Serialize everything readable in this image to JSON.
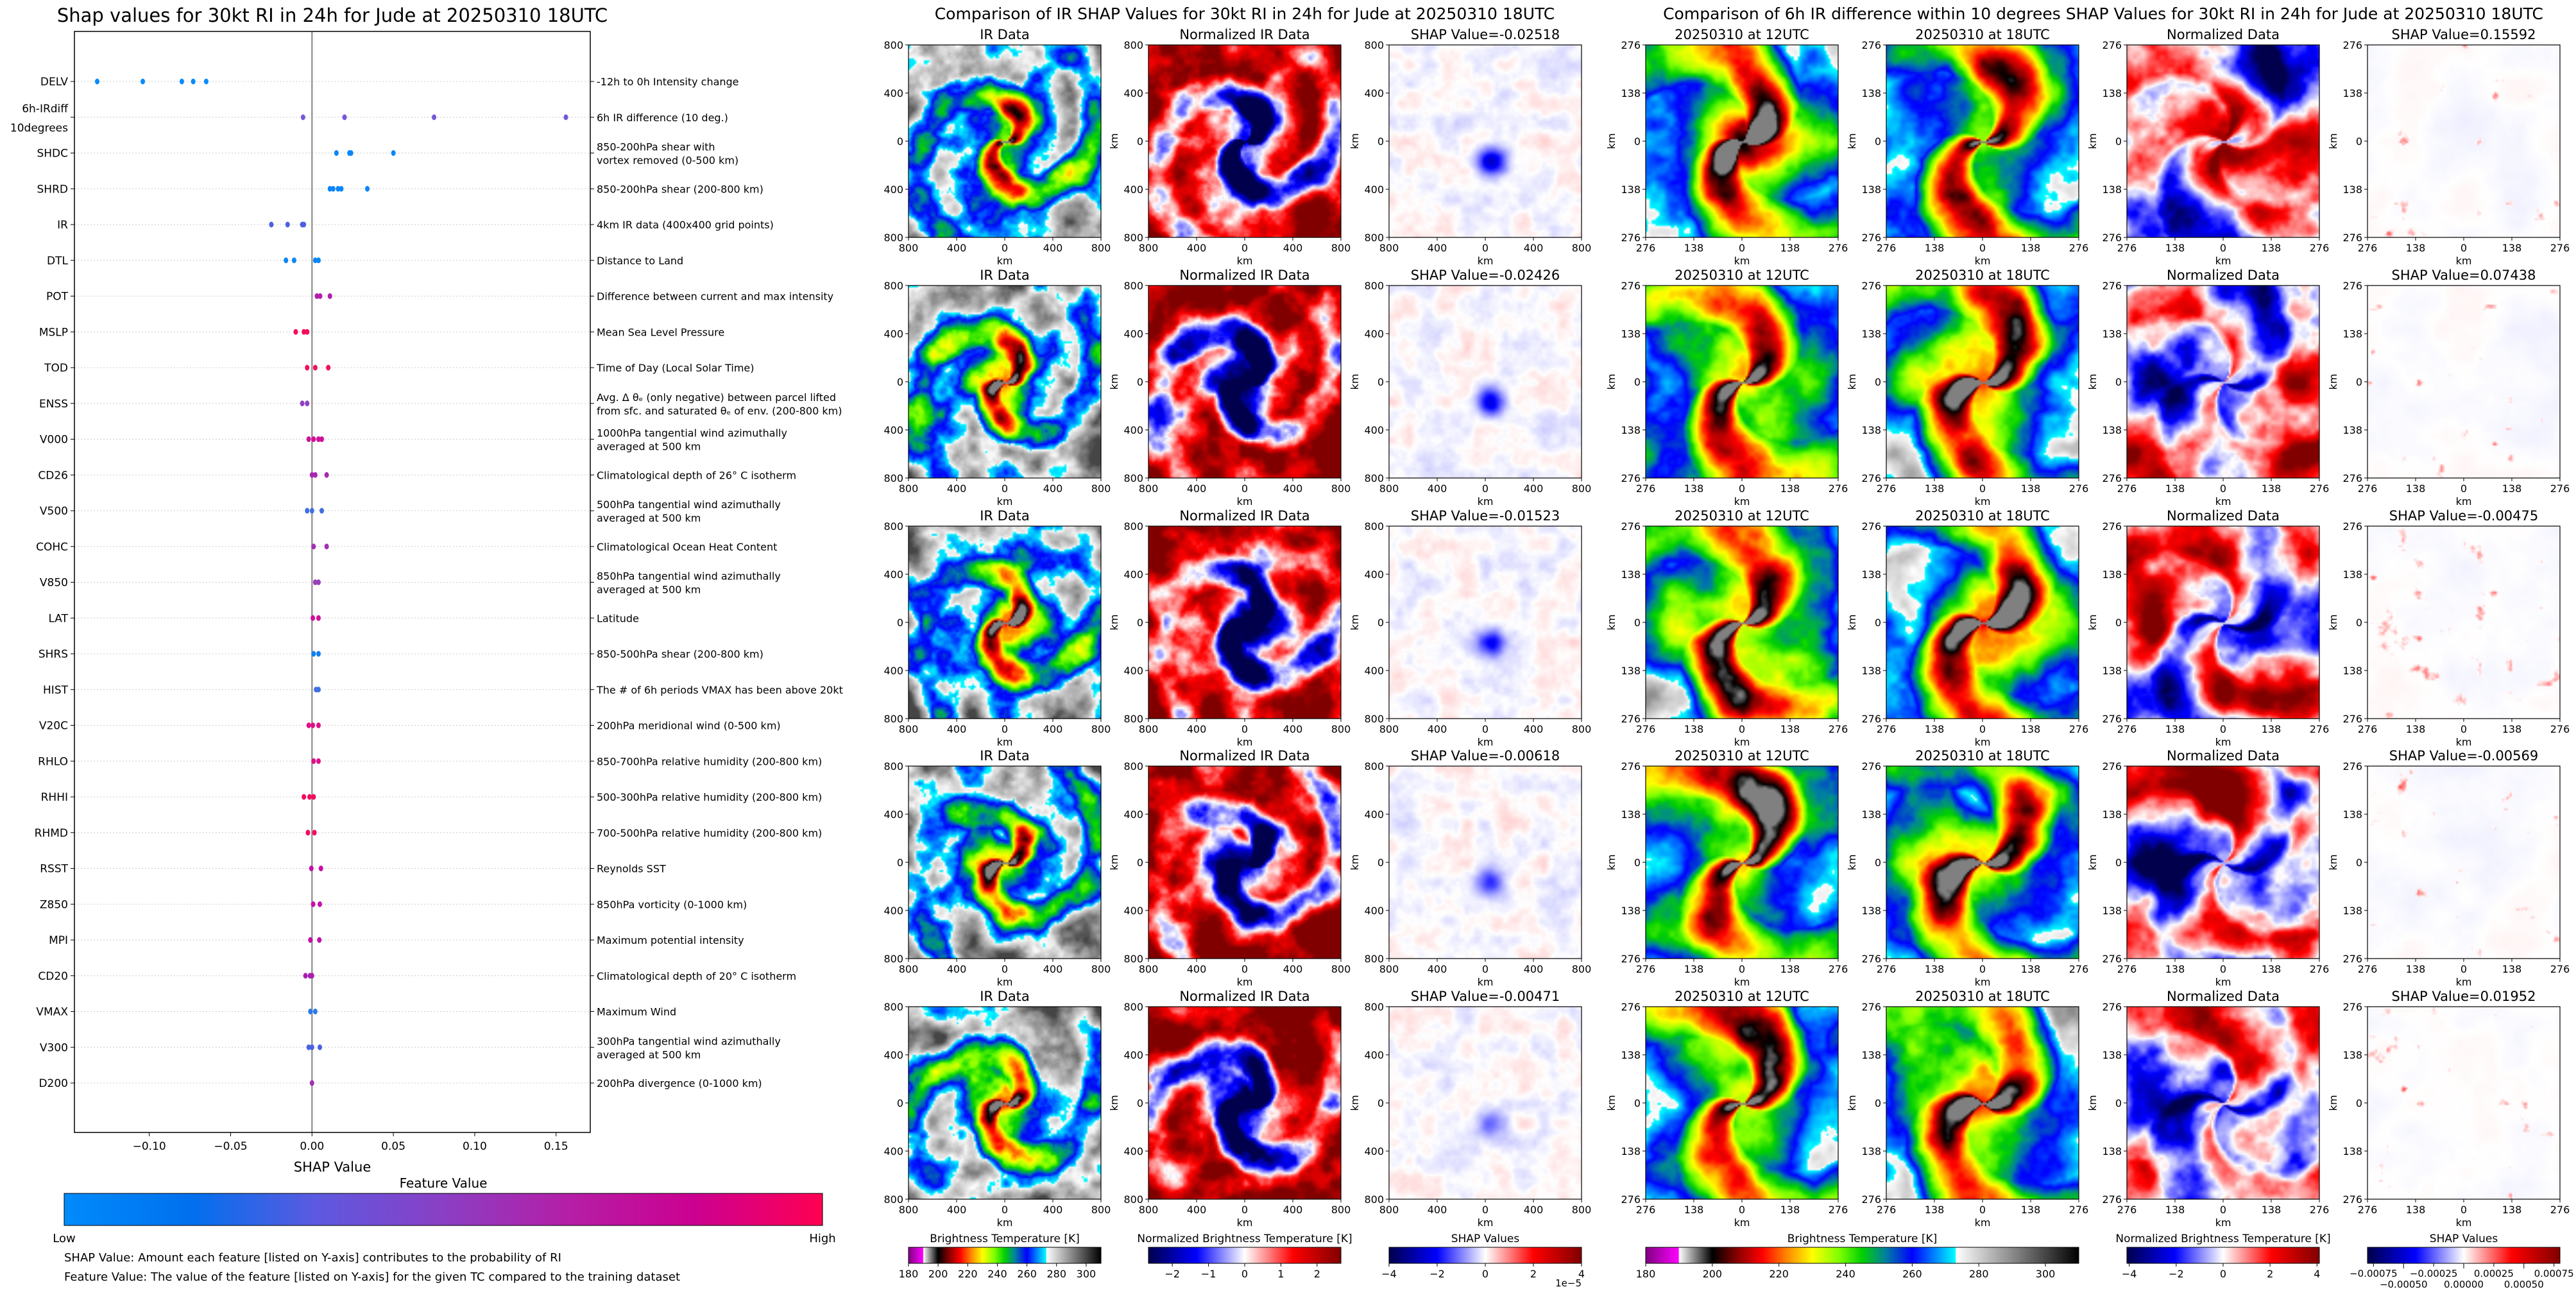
{
  "chart_data": [
    {
      "type": "scatter",
      "title": "Shap values for 30kt RI in 24h for Jude at 20250310 18UTC",
      "xlabel": "SHAP Value",
      "xlim": [
        -0.146,
        0.171
      ],
      "xticks": [
        -0.1,
        -0.05,
        0.0,
        0.05,
        0.1,
        0.15
      ],
      "xtick_labels": [
        "−0.10",
        "−0.05",
        "0.00",
        "0.05",
        "0.10",
        "0.15"
      ],
      "grid": "horizontal dotted",
      "features": [
        {
          "name": [
            "DELV"
          ],
          "description": [
            "-12h to 0h Intensity change"
          ],
          "color": "#0a8bfb",
          "shap_values": [
            -0.132,
            -0.104,
            -0.08,
            -0.073,
            -0.065
          ]
        },
        {
          "name": [
            "6h-IRdiff",
            "10degrees"
          ],
          "description": [
            "6h IR difference (10 deg.)"
          ],
          "color": "#7657d8",
          "shap_values": [
            -0.0055,
            0.02,
            0.075,
            0.156
          ]
        },
        {
          "name": [
            "SHDC"
          ],
          "description": [
            "850-200hPa shear with",
            "vortex removed (0-500 km)"
          ],
          "color": "#0a86f8",
          "shap_values": [
            0.015,
            0.023,
            0.024,
            0.05
          ]
        },
        {
          "name": [
            "SHRD"
          ],
          "description": [
            "850-200hPa shear (200-800 km)"
          ],
          "color": "#0a86f8",
          "shap_values": [
            0.011,
            0.013,
            0.016,
            0.018,
            0.034
          ]
        },
        {
          "name": [
            "IR"
          ],
          "description": [
            "4km IR data (400x400 grid points)"
          ],
          "color": "#4e5fe0",
          "shap_values": [
            -0.025,
            -0.015,
            -0.006,
            -0.005
          ]
        },
        {
          "name": [
            "DTL"
          ],
          "description": [
            "Distance to Land"
          ],
          "color": "#0a86f8",
          "shap_values": [
            -0.016,
            -0.011,
            0.002,
            0.004
          ]
        },
        {
          "name": [
            "POT"
          ],
          "description": [
            "Difference between current and max intensity"
          ],
          "color": "#b41eaa",
          "shap_values": [
            0.003,
            0.005,
            0.011
          ]
        },
        {
          "name": [
            "MSLP"
          ],
          "description": [
            "Mean Sea Level Pressure"
          ],
          "color": "#f50a5c",
          "shap_values": [
            -0.01,
            -0.005,
            -0.003
          ]
        },
        {
          "name": [
            "TOD"
          ],
          "description": [
            "Time of Day (Local Solar Time)"
          ],
          "color": "#f0105e",
          "shap_values": [
            -0.003,
            0.002,
            0.01
          ]
        },
        {
          "name": [
            "ENSS"
          ],
          "description": [
            "Avg. Δ θₑ (only negative) between parcel lifted",
            "from sfc. and saturated θₑ of env. (200-800 km)"
          ],
          "color": "#9040c4",
          "shap_values": [
            -0.006,
            -0.003
          ]
        },
        {
          "name": [
            "V000"
          ],
          "description": [
            "1000hPa tangential wind azimuthally",
            "averaged at 500 km"
          ],
          "color": "#d0109a",
          "shap_values": [
            -0.002,
            0.001,
            0.004,
            0.006
          ]
        },
        {
          "name": [
            "CD26"
          ],
          "description": [
            "Climatological depth of 26° C isotherm"
          ],
          "color": "#a828b0",
          "shap_values": [
            0.0,
            0.002,
            0.009
          ]
        },
        {
          "name": [
            "V500"
          ],
          "description": [
            "500hPa tangential wind azimuthally",
            "averaged at 500 km"
          ],
          "color": "#4070e0",
          "shap_values": [
            -0.003,
            0.0,
            0.006
          ]
        },
        {
          "name": [
            "COHC"
          ],
          "description": [
            "Climatological Ocean Heat Content"
          ],
          "color": "#a030b4",
          "shap_values": [
            0.001,
            0.009
          ]
        },
        {
          "name": [
            "V850"
          ],
          "description": [
            "850hPa tangential wind azimuthally",
            "averaged at 500 km"
          ],
          "color": "#9a40b8",
          "shap_values": [
            0.002,
            0.004
          ]
        },
        {
          "name": [
            "LAT"
          ],
          "description": [
            "Latitude"
          ],
          "color": "#d0109a",
          "shap_values": [
            0.0005,
            0.004
          ]
        },
        {
          "name": [
            "SHRS"
          ],
          "description": [
            "850-500hPa shear (200-800 km)"
          ],
          "color": "#1080f0",
          "shap_values": [
            0.001,
            0.004
          ]
        },
        {
          "name": [
            "HIST"
          ],
          "description": [
            "The # of 6h periods VMAX has been above 20kt"
          ],
          "color": "#4070e0",
          "shap_values": [
            0.0025,
            0.004
          ]
        },
        {
          "name": [
            "V20C"
          ],
          "description": [
            "200hPa meridional wind (0-500 km)"
          ],
          "color": "#e0108a",
          "shap_values": [
            -0.002,
            0.0005,
            0.004
          ]
        },
        {
          "name": [
            "RHLO"
          ],
          "description": [
            "850-700hPa relative humidity (200-800 km)"
          ],
          "color": "#e0108a",
          "shap_values": [
            0.001,
            0.004
          ]
        },
        {
          "name": [
            "RHHI"
          ],
          "description": [
            "500-300hPa relative humidity (200-800 km)"
          ],
          "color": "#f50a60",
          "shap_values": [
            -0.005,
            -0.0015,
            0.001
          ]
        },
        {
          "name": [
            "RHMD"
          ],
          "description": [
            "700-500hPa relative humidity (200-800 km)"
          ],
          "color": "#f50a60",
          "shap_values": [
            -0.0025,
            0.0015
          ]
        },
        {
          "name": [
            "RSST"
          ],
          "description": [
            "Reynolds SST"
          ],
          "color": "#c810a8",
          "shap_values": [
            -0.0004,
            0.0055
          ]
        },
        {
          "name": [
            "Z850"
          ],
          "description": [
            "850hPa vorticity (0-1000 km)"
          ],
          "color": "#c810a8",
          "shap_values": [
            0.0007,
            0.0048
          ]
        },
        {
          "name": [
            "MPI"
          ],
          "description": [
            "Maximum potential intensity"
          ],
          "color": "#c010a8",
          "shap_values": [
            -0.001,
            0.0045
          ]
        },
        {
          "name": [
            "CD20"
          ],
          "description": [
            "Climatological depth of 20° C isotherm"
          ],
          "color": "#a820b0",
          "shap_values": [
            -0.004,
            -0.0012,
            0.0
          ]
        },
        {
          "name": [
            "VMAX"
          ],
          "description": [
            "Maximum Wind"
          ],
          "color": "#2a7ae8",
          "shap_values": [
            -0.001,
            0.002
          ]
        },
        {
          "name": [
            "V300"
          ],
          "description": [
            "300hPa tangential wind azimuthally",
            "averaged at 500 km"
          ],
          "color": "#4a60e0",
          "shap_values": [
            -0.002,
            0.0,
            0.0048
          ]
        },
        {
          "name": [
            "D200"
          ],
          "description": [
            "200hPa divergence (0-1000 km)"
          ],
          "color": "#a030b0",
          "shap_values": [
            0.0
          ]
        }
      ],
      "colorbar": {
        "title": "Feature Value",
        "low": "Low",
        "high": "High",
        "colors": [
          "#008bfb",
          "#0070ee",
          "#5d59e0",
          "#8a3fc4",
          "#b51ea6",
          "#cc0090",
          "#ff0052"
        ]
      },
      "notes": [
        "SHAP Value: Amount each feature [listed on Y-axis] contributes to the probability of RI",
        "Feature Value: The value of the feature [listed on Y-axis] for the given TC compared to the training dataset"
      ]
    },
    {
      "type": "heatmap",
      "title": "Comparison of IR SHAP Values for 30kt RI in 24h for Jude at 20250310 18UTC",
      "axis_label": "km",
      "tick_labels": [
        "800",
        "400",
        "0",
        "400",
        "800"
      ],
      "rows": [
        {
          "titles": [
            "IR Data",
            "Normalized IR Data",
            "SHAP Value=-0.02518"
          ]
        },
        {
          "titles": [
            "IR Data",
            "Normalized IR Data",
            "SHAP Value=-0.02426"
          ]
        },
        {
          "titles": [
            "IR Data",
            "Normalized IR Data",
            "SHAP Value=-0.01523"
          ]
        },
        {
          "titles": [
            "IR Data",
            "Normalized IR Data",
            "SHAP Value=-0.00618"
          ]
        },
        {
          "titles": [
            "IR Data",
            "Normalized IR Data",
            "SHAP Value=-0.00471"
          ]
        }
      ],
      "colorbars": [
        {
          "title": "Brightness Temperature [K]",
          "colormap": "ir",
          "range": [
            180,
            310
          ],
          "ticks": [
            180,
            200,
            220,
            240,
            260,
            280,
            300
          ],
          "labels": [
            "180",
            "200",
            "220",
            "240",
            "260",
            "280",
            "300"
          ],
          "offset": ""
        },
        {
          "title": "Normalized Brightness Temperature [K]",
          "colormap": "seismic",
          "range": [
            -2.66,
            2.66
          ],
          "ticks": [
            -2,
            -1,
            0,
            1,
            2
          ],
          "labels": [
            "−2",
            "−1",
            "0",
            "1",
            "2"
          ],
          "offset": ""
        },
        {
          "title": "SHAP Values",
          "colormap": "seismic",
          "range": [
            -4,
            4
          ],
          "ticks": [
            -4,
            -2,
            0,
            2,
            4
          ],
          "labels": [
            "−4",
            "−2",
            "0",
            "2",
            "4"
          ],
          "offset": "1e−5"
        }
      ]
    },
    {
      "type": "heatmap",
      "title": "Comparison of 6h IR difference within 10 degrees SHAP Values for 30kt RI in 24h for Jude at 20250310 18UTC",
      "axis_label": "km",
      "tick_labels": [
        "276",
        "138",
        "0",
        "138",
        "276"
      ],
      "rows": [
        {
          "titles": [
            "20250310 at 12UTC",
            "20250310 at 18UTC",
            "Normalized Data",
            "SHAP Value=0.15592"
          ]
        },
        {
          "titles": [
            "20250310 at 12UTC",
            "20250310 at 18UTC",
            "Normalized Data",
            "SHAP Value=0.07438"
          ]
        },
        {
          "titles": [
            "20250310 at 12UTC",
            "20250310 at 18UTC",
            "Normalized Data",
            "SHAP Value=-0.00475"
          ]
        },
        {
          "titles": [
            "20250310 at 12UTC",
            "20250310 at 18UTC",
            "Normalized Data",
            "SHAP Value=-0.00569"
          ]
        },
        {
          "titles": [
            "20250310 at 12UTC",
            "20250310 at 18UTC",
            "Normalized Data",
            "SHAP Value=0.01952"
          ]
        }
      ],
      "colorbars": [
        {
          "title": "Brightness Temperature [K]",
          "colormap": "ir",
          "range": [
            180,
            310
          ],
          "ticks": [
            180,
            200,
            220,
            240,
            260,
            280,
            300
          ],
          "labels": [
            "180",
            "200",
            "220",
            "240",
            "260",
            "280",
            "300"
          ],
          "offset": ""
        },
        {
          "title": "Normalized Brightness Temperature [K]",
          "colormap": "seismic",
          "range": [
            -4.1,
            4.1
          ],
          "ticks": [
            -4,
            -2,
            0,
            2,
            4
          ],
          "labels": [
            "−4",
            "−2",
            "0",
            "2",
            "4"
          ],
          "offset": ""
        },
        {
          "title": "SHAP Values",
          "colormap": "seismic",
          "range": [
            -0.0008,
            0.0008
          ],
          "ticks": [
            -0.00075,
            -0.0005,
            -0.00025,
            0,
            0.00025,
            0.0005,
            0.00075
          ],
          "labels": [
            "−0.00075",
            "−0.00050",
            "−0.00025",
            "0.00000",
            "0.00025",
            "0.00050",
            "0.00075"
          ],
          "offset": ""
        }
      ]
    }
  ]
}
